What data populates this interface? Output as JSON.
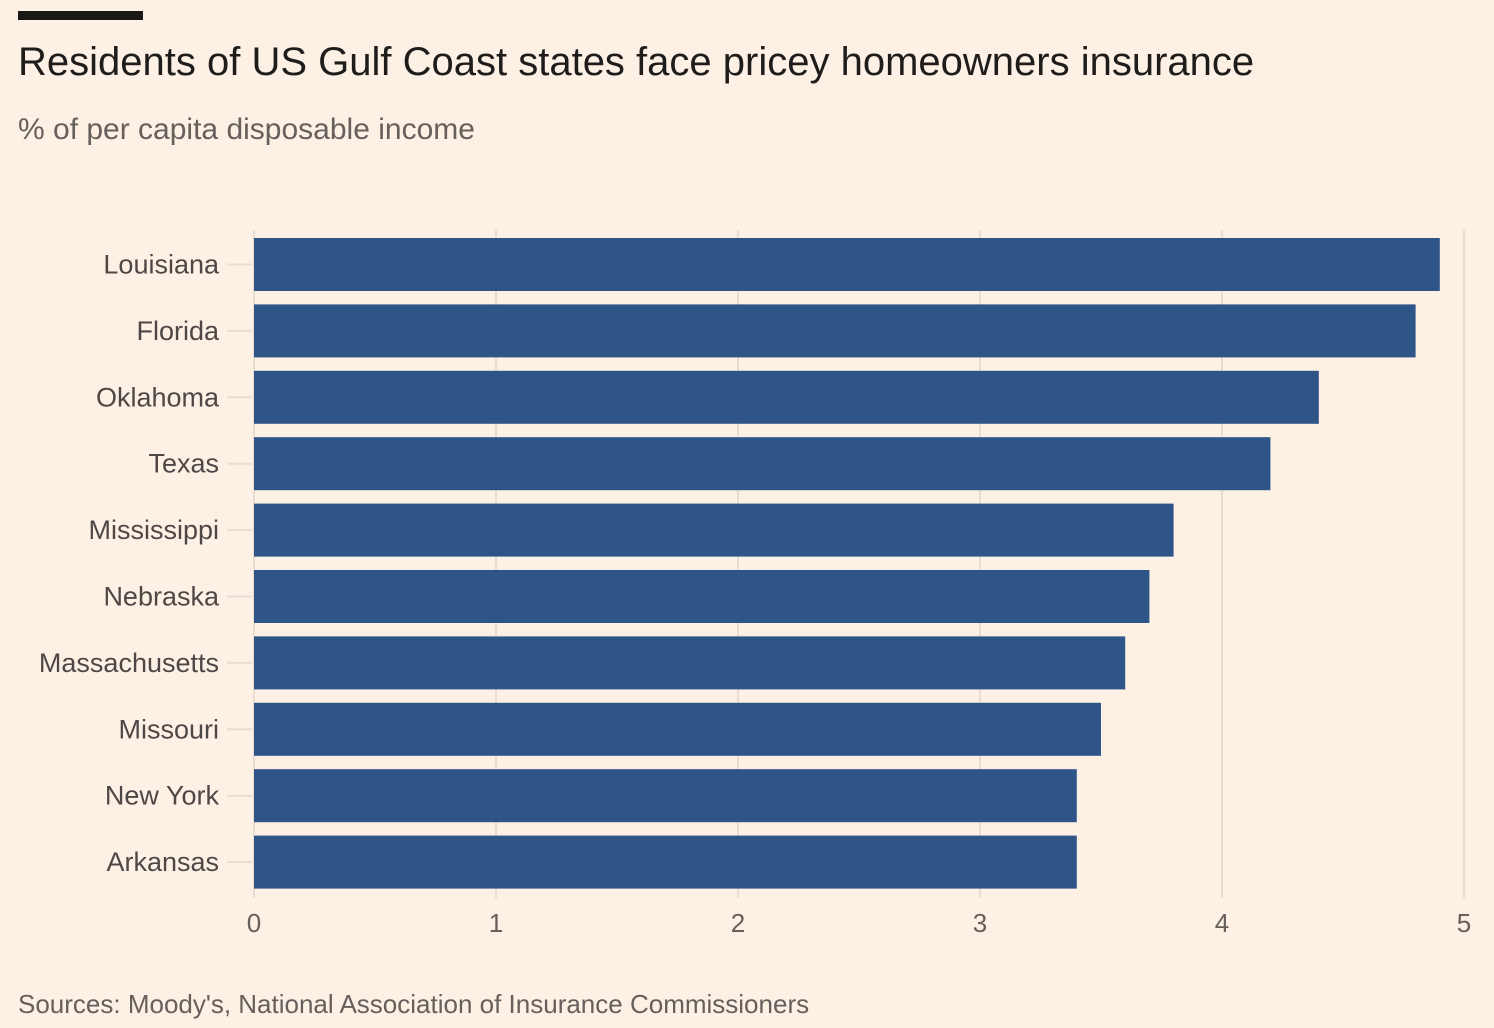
{
  "header": {
    "title": "Residents of US Gulf Coast states face pricey homeowners insurance",
    "subtitle": "% of per capita disposable income"
  },
  "footer": {
    "source": "Sources: Moody's, National Association of Insurance Commissioners"
  },
  "colors": {
    "bar": "#2f5487",
    "background": "#fdf0e5",
    "grid": "#e9ddd2",
    "rule": "#1a1817"
  },
  "chart_data": {
    "type": "bar",
    "orientation": "horizontal",
    "title": "Residents of US Gulf Coast states face pricey homeowners insurance",
    "subtitle": "% of per capita disposable income",
    "categories": [
      "Louisiana",
      "Florida",
      "Oklahoma",
      "Texas",
      "Mississippi",
      "Nebraska",
      "Massachusetts",
      "Missouri",
      "New York",
      "Arkansas"
    ],
    "values": [
      4.9,
      4.8,
      4.4,
      4.2,
      3.8,
      3.7,
      3.6,
      3.5,
      3.4,
      3.4
    ],
    "xlim": [
      0,
      5
    ],
    "xticks": [
      0,
      1,
      2,
      3,
      4,
      5
    ],
    "xlabel": "",
    "ylabel": "",
    "grid": true,
    "source": "Sources: Moody's, National Association of Insurance Commissioners"
  }
}
